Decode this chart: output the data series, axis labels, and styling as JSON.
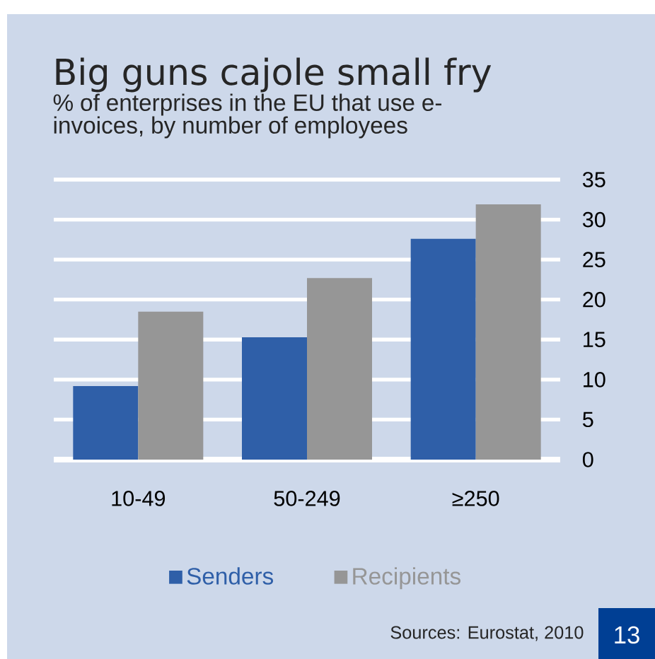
{
  "chart_data": {
    "type": "bar",
    "title": "Big guns cajole small fry",
    "subtitle": "% of enterprises in the EU that use e-invoices, by number of employees",
    "categories": [
      "10-49",
      "50-249",
      "≥250"
    ],
    "series": [
      {
        "name": "Senders",
        "color": "#2f5fa8",
        "values": [
          9.2,
          15.3,
          27.6
        ]
      },
      {
        "name": "Recipients",
        "color": "#969696",
        "values": [
          18.5,
          22.7,
          31.9
        ]
      }
    ],
    "ylim": [
      0,
      35
    ],
    "yticks": [
      0,
      5,
      10,
      15,
      20,
      25,
      30,
      35
    ],
    "grid": "y",
    "legend": "bottom",
    "annotations": [
      "Sources: Eurostat, 2010",
      "13"
    ]
  }
}
